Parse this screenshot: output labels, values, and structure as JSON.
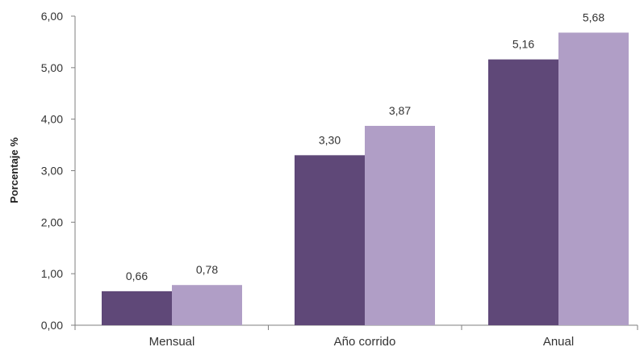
{
  "chart_data": {
    "type": "bar",
    "categories": [
      "Mensual",
      "Año corrido",
      "Anual"
    ],
    "series": [
      {
        "values": [
          0.66,
          3.3,
          5.16
        ],
        "labels": [
          "0,66",
          "3,30",
          "5,16"
        ],
        "color": "#5f4878"
      },
      {
        "values": [
          0.78,
          3.87,
          5.68
        ],
        "labels": [
          "0,78",
          "3,87",
          "5,68"
        ],
        "color": "#b09ec6"
      }
    ],
    "ylabel": "Porcentaje %",
    "ylim": [
      0,
      6
    ],
    "yticks": [
      0,
      1,
      2,
      3,
      4,
      5,
      6
    ],
    "ytick_labels": [
      "0,00",
      "1,00",
      "2,00",
      "3,00",
      "4,00",
      "5,00",
      "6,00"
    ],
    "grid": false,
    "axis_color": "#7f7f7f"
  }
}
